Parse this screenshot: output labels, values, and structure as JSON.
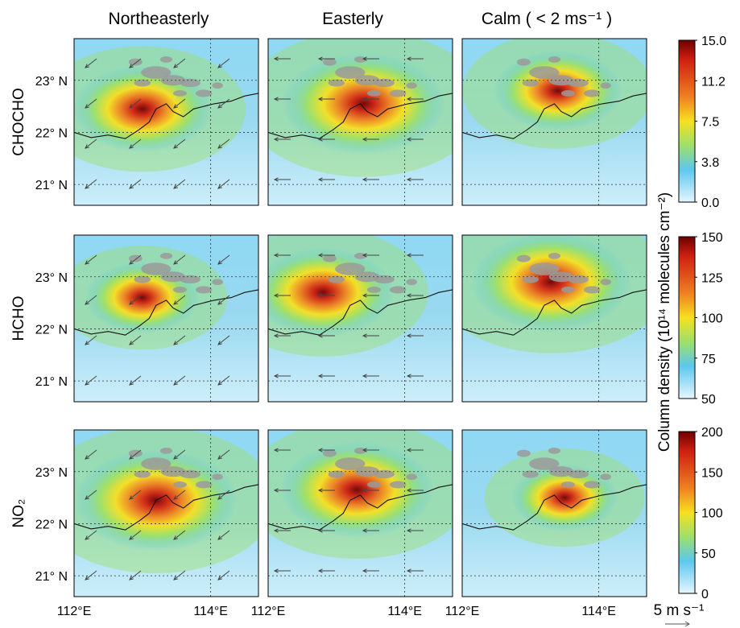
{
  "chart_data": {
    "type": "heatmap",
    "columns": [
      "Northeasterly",
      "Easterly",
      "Calm ( < 2 ms⁻¹ )"
    ],
    "rows": [
      {
        "label": "CHOCHO",
        "colorbar": {
          "ticks": [
            "15.0",
            "11.2",
            "7.5",
            "3.8",
            "0.0"
          ],
          "range": [
            0,
            15
          ]
        }
      },
      {
        "label": "HCHO",
        "colorbar": {
          "ticks": [
            "150",
            "125",
            "100",
            "75",
            "50"
          ],
          "range": [
            50,
            150
          ]
        }
      },
      {
        "label": "NO₂",
        "colorbar": {
          "ticks": [
            "200",
            "150",
            "100",
            "50",
            "0"
          ],
          "range": [
            0,
            200
          ]
        }
      }
    ],
    "lat_ticks": [
      "23° N",
      "22° N",
      "21° N"
    ],
    "lon_ticks": [
      "112°E",
      "114°E"
    ],
    "colorbar_label": "Column density (10¹⁴ molecules cm⁻²)",
    "wind_scale_label": "5 m s⁻¹",
    "lon_range": [
      112,
      114.7
    ],
    "lat_range": [
      20.6,
      23.8
    ],
    "panels": [
      {
        "row": 0,
        "col": 0,
        "hotspot": {
          "lon": 113.0,
          "lat": 22.45
        },
        "peak": 0.78,
        "wind": "northeasterly"
      },
      {
        "row": 0,
        "col": 1,
        "hotspot": {
          "lon": 113.4,
          "lat": 22.55
        },
        "peak": 0.95,
        "wind": "easterly"
      },
      {
        "row": 0,
        "col": 2,
        "hotspot": {
          "lon": 113.4,
          "lat": 22.8
        },
        "peak": 0.7,
        "wind": "calm"
      },
      {
        "row": 1,
        "col": 0,
        "hotspot": {
          "lon": 113.0,
          "lat": 22.6
        },
        "peak": 0.6,
        "wind": "northeasterly"
      },
      {
        "row": 1,
        "col": 1,
        "hotspot": {
          "lon": 112.8,
          "lat": 22.7
        },
        "peak": 0.8,
        "wind": "easterly"
      },
      {
        "row": 1,
        "col": 2,
        "hotspot": {
          "lon": 113.3,
          "lat": 22.9
        },
        "peak": 0.92,
        "wind": "calm"
      },
      {
        "row": 2,
        "col": 0,
        "hotspot": {
          "lon": 113.2,
          "lat": 22.45
        },
        "peak": 0.95,
        "wind": "northeasterly"
      },
      {
        "row": 2,
        "col": 1,
        "hotspot": {
          "lon": 113.3,
          "lat": 22.65
        },
        "peak": 0.88,
        "wind": "easterly"
      },
      {
        "row": 2,
        "col": 2,
        "hotspot": {
          "lon": 113.5,
          "lat": 22.5
        },
        "peak": 0.55,
        "wind": "calm"
      }
    ],
    "grid": true,
    "colors": {
      "low": "#e6f6ff",
      "cyan": "#5bc8ee",
      "green": "#9de06a",
      "yellow": "#f7e020",
      "orange": "#f08020",
      "red": "#d02010",
      "dark": "#6e0000",
      "urban": "#9a9a9a"
    }
  }
}
